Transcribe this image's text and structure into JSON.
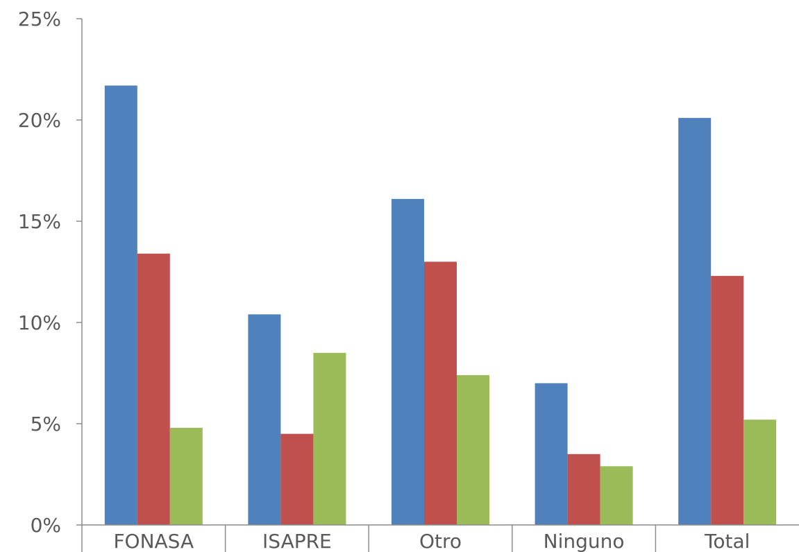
{
  "chart_data": {
    "type": "bar",
    "categories": [
      "FONASA",
      "ISAPRE",
      "Otro",
      "Ninguno",
      "Total"
    ],
    "series": [
      {
        "values": [
          21.7,
          10.4,
          16.1,
          7.0,
          20.1
        ],
        "color": "#4F81BD"
      },
      {
        "values": [
          13.4,
          4.5,
          13.0,
          3.5,
          12.3
        ],
        "color": "#C0504D"
      },
      {
        "values": [
          4.8,
          8.5,
          7.4,
          2.9,
          5.2
        ],
        "color": "#9BBB59"
      }
    ],
    "ylim": [
      0,
      25
    ],
    "yticks": [
      {
        "value": 0,
        "label": "0%"
      },
      {
        "value": 5,
        "label": "5%"
      },
      {
        "value": 10,
        "label": "10%"
      },
      {
        "value": 15,
        "label": "15%"
      },
      {
        "value": 20,
        "label": "20%"
      },
      {
        "value": 25,
        "label": "25%"
      }
    ],
    "grid": false,
    "legend": "none"
  }
}
